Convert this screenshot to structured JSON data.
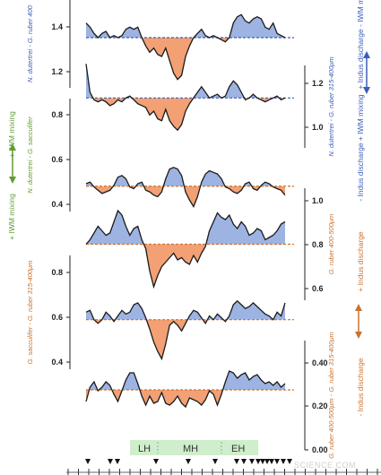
{
  "chart_data": {
    "type": "line",
    "x_range": [
      0,
      100
    ],
    "series": [
      {
        "axis": "left",
        "label": "N. dutertrei - G. ruber 400",
        "ticks": [
          "1.4",
          "1.2"
        ],
        "fill_above": "#9db3e2",
        "fill_below": "#f2a074",
        "baseline_color": "#3b5db8",
        "x": [
          0,
          2,
          4,
          6,
          8,
          10,
          12,
          14,
          16,
          18,
          20,
          22,
          24,
          26,
          28,
          30,
          32,
          34,
          36,
          38,
          40,
          42,
          44,
          46,
          48,
          50,
          52,
          54,
          56,
          58,
          60,
          62,
          64,
          66,
          68,
          70,
          72,
          74,
          76,
          78,
          80,
          82,
          84,
          86,
          88,
          90,
          92,
          94,
          96,
          98,
          100
        ],
        "y": [
          1.44,
          1.42,
          1.39,
          1.37,
          1.39,
          1.4,
          1.37,
          1.38,
          1.37,
          1.38,
          1.41,
          1.42,
          1.41,
          1.42,
          1.37,
          1.33,
          1.3,
          1.32,
          1.29,
          1.28,
          1.32,
          1.26,
          1.2,
          1.17,
          1.19,
          1.28,
          1.33,
          1.37,
          1.39,
          1.41,
          1.38,
          1.37,
          1.38,
          1.37,
          1.36,
          1.35,
          1.37,
          1.44,
          1.47,
          1.48,
          1.45,
          1.44,
          1.46,
          1.47,
          1.46,
          1.42,
          1.41,
          1.44,
          1.39,
          1.38,
          1.37
        ],
        "baseline": 1.37,
        "ylim": [
          1.1,
          1.55
        ]
      },
      {
        "axis": "right",
        "label": "N. dutertrei - G. ruber 315-400μm",
        "ticks": [
          "1.2",
          "1.0"
        ],
        "fill_above": "#9db3e2",
        "fill_below": "#f2a074",
        "baseline_color": "#3b5db8",
        "x": [
          0,
          2,
          4,
          6,
          8,
          10,
          12,
          14,
          16,
          18,
          20,
          22,
          24,
          26,
          28,
          30,
          32,
          34,
          36,
          38,
          40,
          42,
          44,
          46,
          48,
          50,
          52,
          54,
          56,
          58,
          60,
          62,
          64,
          66,
          68,
          70,
          72,
          74,
          76,
          78,
          80,
          82,
          84,
          86,
          88,
          90,
          92,
          94,
          96,
          98,
          100
        ],
        "y": [
          1.27,
          1.12,
          1.08,
          1.07,
          1.08,
          1.07,
          1.05,
          1.06,
          1.08,
          1.07,
          1.09,
          1.1,
          1.08,
          1.06,
          1.05,
          1.04,
          1.0,
          1.02,
          0.98,
          0.97,
          1.03,
          0.97,
          0.94,
          0.92,
          0.95,
          1.02,
          1.06,
          1.09,
          1.12,
          1.15,
          1.12,
          1.09,
          1.1,
          1.11,
          1.09,
          1.1,
          1.15,
          1.18,
          1.16,
          1.12,
          1.08,
          1.09,
          1.11,
          1.09,
          1.08,
          1.07,
          1.08,
          1.09,
          1.1,
          1.08,
          1.09
        ],
        "baseline": 1.09,
        "ylim": [
          0.85,
          1.3
        ]
      },
      {
        "axis": "left",
        "label": "N. dutertrei - G. sacculifer",
        "ticks": [
          "0.8",
          "0.6",
          "0.4"
        ],
        "fill_above": "#9db3e2",
        "fill_below": "#f2a074",
        "baseline_color": "#c9732f",
        "x": [
          0,
          2,
          4,
          6,
          8,
          10,
          12,
          14,
          16,
          18,
          20,
          22,
          24,
          26,
          28,
          30,
          32,
          34,
          36,
          38,
          40,
          42,
          44,
          46,
          48,
          50,
          52,
          54,
          56,
          58,
          60,
          62,
          64,
          66,
          68,
          70,
          72,
          74,
          76,
          78,
          80,
          82,
          84,
          86,
          88,
          90,
          92,
          94,
          96,
          98,
          100
        ],
        "y": [
          0.57,
          0.58,
          0.55,
          0.53,
          0.51,
          0.52,
          0.53,
          0.56,
          0.61,
          0.62,
          0.6,
          0.55,
          0.54,
          0.57,
          0.58,
          0.53,
          0.52,
          0.5,
          0.49,
          0.52,
          0.6,
          0.66,
          0.67,
          0.66,
          0.62,
          0.52,
          0.47,
          0.43,
          0.49,
          0.58,
          0.63,
          0.65,
          0.64,
          0.63,
          0.6,
          0.55,
          0.54,
          0.52,
          0.51,
          0.53,
          0.57,
          0.58,
          0.54,
          0.53,
          0.56,
          0.58,
          0.57,
          0.55,
          0.54,
          0.53,
          0.5
        ],
        "baseline": 0.555,
        "ylim": [
          0.35,
          0.9
        ]
      },
      {
        "axis": "right",
        "label": "G. ruber 400-500μm",
        "ticks": [
          "1.0",
          "0.8",
          "0.6"
        ],
        "fill_above": "#9db3e2",
        "fill_below": "#f2a074",
        "baseline_color": "#c9732f",
        "x": [
          0,
          2,
          4,
          6,
          8,
          10,
          12,
          14,
          16,
          18,
          20,
          22,
          24,
          26,
          28,
          30,
          32,
          34,
          36,
          38,
          40,
          42,
          44,
          46,
          48,
          50,
          52,
          54,
          56,
          58,
          60,
          62,
          64,
          66,
          68,
          70,
          72,
          74,
          76,
          78,
          80,
          82,
          84,
          86,
          88,
          90,
          92,
          94,
          96,
          98,
          100
        ],
        "y": [
          0.8,
          0.82,
          0.85,
          0.88,
          0.86,
          0.84,
          0.85,
          0.9,
          0.95,
          0.93,
          0.88,
          0.84,
          0.87,
          0.88,
          0.82,
          0.78,
          0.68,
          0.61,
          0.66,
          0.7,
          0.72,
          0.74,
          0.76,
          0.73,
          0.74,
          0.72,
          0.71,
          0.75,
          0.72,
          0.76,
          0.79,
          0.86,
          0.9,
          0.94,
          0.92,
          0.91,
          0.93,
          0.89,
          0.87,
          0.9,
          0.88,
          0.84,
          0.85,
          0.87,
          0.86,
          0.82,
          0.83,
          0.84,
          0.86,
          0.89,
          0.9
        ],
        "baseline": 0.8,
        "ylim": [
          0.55,
          1.05
        ]
      },
      {
        "axis": "left",
        "label": "G. sacculifer - G. ruber 315-400μm",
        "ticks": [
          "0.8",
          "0.6",
          "0.4"
        ],
        "fill_above": "#9db3e2",
        "fill_below": "#f2a074",
        "baseline_color": "#c9732f",
        "x": [
          0,
          2,
          4,
          6,
          8,
          10,
          12,
          14,
          16,
          18,
          20,
          22,
          24,
          26,
          28,
          30,
          32,
          34,
          36,
          38,
          40,
          42,
          44,
          46,
          48,
          50,
          52,
          54,
          56,
          58,
          60,
          62,
          64,
          66,
          68,
          70,
          72,
          74,
          76,
          78,
          80,
          82,
          84,
          86,
          88,
          90,
          92,
          94,
          96,
          98,
          100
        ],
        "y": [
          0.62,
          0.63,
          0.58,
          0.56,
          0.58,
          0.62,
          0.6,
          0.57,
          0.6,
          0.63,
          0.61,
          0.62,
          0.66,
          0.67,
          0.64,
          0.59,
          0.53,
          0.46,
          0.41,
          0.37,
          0.45,
          0.55,
          0.57,
          0.55,
          0.52,
          0.56,
          0.6,
          0.63,
          0.62,
          0.59,
          0.56,
          0.6,
          0.58,
          0.61,
          0.59,
          0.57,
          0.6,
          0.66,
          0.68,
          0.66,
          0.64,
          0.65,
          0.67,
          0.65,
          0.63,
          0.61,
          0.6,
          0.58,
          0.62,
          0.6,
          0.67
        ],
        "baseline": 0.58,
        "ylim": [
          0.3,
          0.9
        ]
      },
      {
        "axis": "right",
        "label": "G. ruber 400-500μm - G. ruber 315-400μm",
        "ticks": [
          "0.40",
          "0.20",
          "0.00"
        ],
        "fill_above": "#9db3e2",
        "fill_below": "#f2a074",
        "baseline_color": "#c9732f",
        "x": [
          0,
          2,
          4,
          6,
          8,
          10,
          12,
          14,
          16,
          18,
          20,
          22,
          24,
          26,
          28,
          30,
          32,
          34,
          36,
          38,
          40,
          42,
          44,
          46,
          48,
          50,
          52,
          54,
          56,
          58,
          60,
          62,
          64,
          66,
          68,
          70,
          72,
          74,
          76,
          78,
          80,
          82,
          84,
          86,
          88,
          90,
          92,
          94,
          96,
          98,
          100
        ],
        "y": [
          0.16,
          0.24,
          0.27,
          0.22,
          0.24,
          0.27,
          0.25,
          0.2,
          0.16,
          0.22,
          0.28,
          0.32,
          0.32,
          0.26,
          0.19,
          0.14,
          0.19,
          0.15,
          0.16,
          0.21,
          0.15,
          0.14,
          0.16,
          0.19,
          0.15,
          0.13,
          0.18,
          0.17,
          0.16,
          0.14,
          0.17,
          0.22,
          0.2,
          0.14,
          0.2,
          0.27,
          0.33,
          0.32,
          0.29,
          0.31,
          0.32,
          0.28,
          0.3,
          0.31,
          0.28,
          0.26,
          0.27,
          0.25,
          0.27,
          0.24,
          0.26
        ],
        "baseline": 0.225,
        "ylim": [
          0.0,
          0.5
        ]
      }
    ],
    "stages": [
      "LH",
      "MH",
      "EH"
    ],
    "side_labels": {
      "left_iwm": "+ IWM mixing",
      "left_iwm_minus": "+ IWM mixing",
      "right_top_plus": "+ Indus discharge - IWM mixing",
      "right_top_minus": "- Indus discharge + IWM mixing",
      "right_bottom_plus": "+ Indus discharge",
      "right_bottom_minus": "- Indus discharge"
    },
    "watermark": "SCIENCE.COM"
  }
}
